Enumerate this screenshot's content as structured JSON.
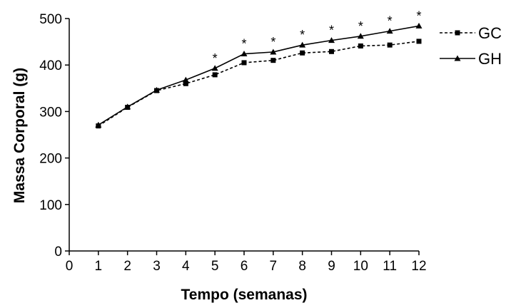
{
  "chart_data": {
    "type": "line",
    "xlabel": "Tempo (semanas)",
    "ylabel": "Massa Corporal (g)",
    "xlim": [
      0,
      12
    ],
    "ylim": [
      0,
      500
    ],
    "x_ticks": [
      "0",
      "1",
      "2",
      "3",
      "4",
      "5",
      "6",
      "7",
      "8",
      "9",
      "10",
      "11",
      "12"
    ],
    "y_ticks": [
      "0",
      "100",
      "200",
      "300",
      "400",
      "500"
    ],
    "x": [
      1,
      2,
      3,
      4,
      5,
      6,
      7,
      8,
      9,
      10,
      11,
      12
    ],
    "series": [
      {
        "name": "GC",
        "marker": "square",
        "dash": "dashed",
        "color": "#000000",
        "values": [
          269,
          309,
          345,
          360,
          379,
          405,
          410,
          426,
          429,
          441,
          443,
          451
        ]
      },
      {
        "name": "GH",
        "marker": "triangle",
        "dash": "solid",
        "color": "#000000",
        "values": [
          271,
          310,
          346,
          368,
          393,
          424,
          428,
          443,
          453,
          462,
          473,
          484
        ]
      }
    ],
    "significance": {
      "symbol": "*",
      "x": [
        5,
        6,
        7,
        8,
        9,
        10,
        11,
        12
      ]
    },
    "legend_position": "right",
    "grid": false
  }
}
